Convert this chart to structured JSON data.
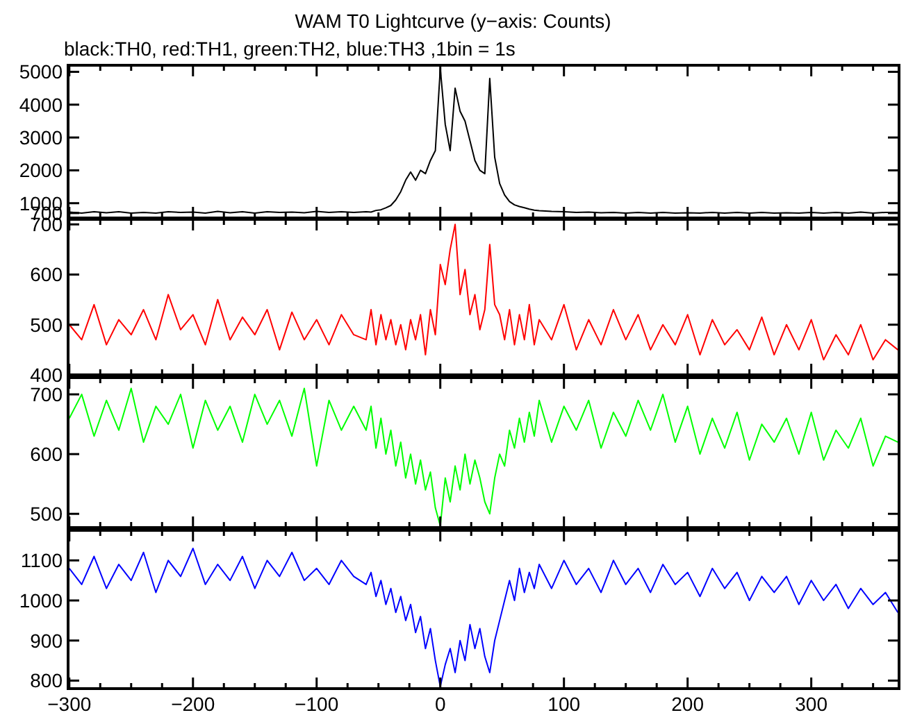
{
  "chart_data": [
    {
      "type": "line",
      "title": "WAM T0 Lightcurve (y−axis: Counts)",
      "subtitle": "black:TH0, red:TH1, green:TH2, blue:TH3 ,1bin = 1s",
      "tick_labels": "y",
      "x": [
        -300,
        -290,
        -280,
        -270,
        -260,
        -250,
        -240,
        -230,
        -220,
        -210,
        -200,
        -190,
        -180,
        -170,
        -160,
        -150,
        -140,
        -130,
        -120,
        -110,
        -100,
        -90,
        -80,
        -70,
        -60,
        -56,
        -52,
        -48,
        -44,
        -40,
        -36,
        -32,
        -28,
        -24,
        -20,
        -16,
        -12,
        -8,
        -4,
        0,
        4,
        8,
        12,
        16,
        20,
        24,
        28,
        32,
        36,
        40,
        44,
        48,
        52,
        56,
        60,
        64,
        68,
        72,
        76,
        80,
        90,
        100,
        110,
        120,
        130,
        140,
        150,
        160,
        170,
        180,
        190,
        200,
        210,
        220,
        230,
        240,
        250,
        260,
        270,
        280,
        290,
        300,
        310,
        320,
        330,
        340,
        350,
        360,
        370
      ],
      "series": [
        {
          "color": "#000000",
          "values": [
            730,
            700,
            740,
            710,
            740,
            700,
            720,
            700,
            740,
            720,
            730,
            700,
            750,
            710,
            740,
            700,
            740,
            720,
            730,
            710,
            750,
            720,
            740,
            720,
            740,
            730,
            780,
            800,
            860,
            930,
            1100,
            1350,
            1700,
            1950,
            1700,
            2000,
            1900,
            2300,
            2600,
            5100,
            3400,
            2600,
            4500,
            3800,
            3500,
            2900,
            2300,
            2000,
            1900,
            4800,
            2400,
            1600,
            1250,
            1050,
            950,
            900,
            860,
            820,
            790,
            770,
            750,
            740,
            720,
            730,
            710,
            720,
            700,
            720,
            700,
            720,
            700,
            710,
            700,
            720,
            700,
            720,
            700,
            720,
            700,
            710,
            700,
            720,
            700,
            720,
            700,
            730,
            700,
            720,
            720
          ]
        }
      ],
      "xlim": [
        -301,
        371
      ],
      "ylim": [
        550,
        5200
      ],
      "yticks": [
        700,
        1000,
        2000,
        3000,
        4000,
        5000
      ],
      "xticks": [
        -300,
        {
          "value": -275,
          "label": null
        },
        {
          "value": -250,
          "label": null
        },
        {
          "value": -225,
          "label": null
        },
        -200,
        {
          "value": -175,
          "label": null
        },
        {
          "value": -150,
          "label": null
        },
        {
          "value": -125,
          "label": null
        },
        -100,
        {
          "value": -75,
          "label": null
        },
        {
          "value": -50,
          "label": null
        },
        {
          "value": -25,
          "label": null
        },
        0,
        {
          "value": 25,
          "label": null
        },
        {
          "value": 50,
          "label": null
        },
        {
          "value": 75,
          "label": null
        },
        100,
        {
          "value": 125,
          "label": null
        },
        {
          "value": 150,
          "label": null
        },
        {
          "value": 175,
          "label": null
        },
        200,
        {
          "value": 225,
          "label": null
        },
        {
          "value": 250,
          "label": null
        },
        {
          "value": 275,
          "label": null
        },
        300,
        {
          "value": 325,
          "label": null
        },
        {
          "value": 350,
          "label": null
        }
      ]
    },
    {
      "type": "line",
      "tick_labels": "y",
      "x": [
        -300,
        -290,
        -280,
        -270,
        -260,
        -250,
        -240,
        -230,
        -220,
        -210,
        -200,
        -190,
        -180,
        -170,
        -160,
        -150,
        -140,
        -130,
        -120,
        -110,
        -100,
        -90,
        -80,
        -70,
        -60,
        -56,
        -52,
        -48,
        -44,
        -40,
        -36,
        -32,
        -28,
        -24,
        -20,
        -16,
        -12,
        -8,
        -4,
        0,
        4,
        8,
        12,
        16,
        20,
        24,
        28,
        32,
        36,
        40,
        44,
        48,
        52,
        56,
        60,
        64,
        68,
        72,
        76,
        80,
        90,
        100,
        110,
        120,
        130,
        140,
        150,
        160,
        170,
        180,
        190,
        200,
        210,
        220,
        230,
        240,
        250,
        260,
        270,
        280,
        290,
        300,
        310,
        320,
        330,
        340,
        350,
        360,
        370
      ],
      "series": [
        {
          "color": "#ff0000",
          "values": [
            500,
            470,
            540,
            460,
            510,
            480,
            530,
            470,
            560,
            490,
            520,
            460,
            550,
            470,
            515,
            480,
            530,
            450,
            525,
            470,
            510,
            460,
            520,
            480,
            470,
            530,
            460,
            520,
            470,
            510,
            460,
            500,
            450,
            510,
            470,
            520,
            440,
            530,
            480,
            620,
            580,
            650,
            700,
            560,
            610,
            520,
            560,
            490,
            530,
            660,
            540,
            520,
            470,
            530,
            460,
            520,
            470,
            540,
            460,
            510,
            470,
            540,
            450,
            510,
            460,
            530,
            470,
            520,
            450,
            500,
            460,
            520,
            440,
            510,
            460,
            490,
            450,
            515,
            440,
            500,
            450,
            510,
            430,
            480,
            440,
            500,
            430,
            470,
            450
          ]
        }
      ],
      "xlim": [
        -301,
        371
      ],
      "ylim": [
        400,
        710
      ],
      "yticks": [
        400,
        500,
        600,
        700
      ],
      "xticks": [
        -300,
        {
          "value": -275,
          "label": null
        },
        {
          "value": -250,
          "label": null
        },
        {
          "value": -225,
          "label": null
        },
        -200,
        {
          "value": -175,
          "label": null
        },
        {
          "value": -150,
          "label": null
        },
        {
          "value": -125,
          "label": null
        },
        -100,
        {
          "value": -75,
          "label": null
        },
        {
          "value": -50,
          "label": null
        },
        {
          "value": -25,
          "label": null
        },
        0,
        {
          "value": 25,
          "label": null
        },
        {
          "value": 50,
          "label": null
        },
        {
          "value": 75,
          "label": null
        },
        100,
        {
          "value": 125,
          "label": null
        },
        {
          "value": 150,
          "label": null
        },
        {
          "value": 175,
          "label": null
        },
        200,
        {
          "value": 225,
          "label": null
        },
        {
          "value": 250,
          "label": null
        },
        {
          "value": 275,
          "label": null
        },
        300,
        {
          "value": 325,
          "label": null
        },
        {
          "value": 350,
          "label": null
        }
      ]
    },
    {
      "type": "line",
      "tick_labels": "y",
      "x": [
        -300,
        -290,
        -280,
        -270,
        -260,
        -250,
        -240,
        -230,
        -220,
        -210,
        -200,
        -190,
        -180,
        -170,
        -160,
        -150,
        -140,
        -130,
        -120,
        -110,
        -100,
        -90,
        -80,
        -70,
        -60,
        -56,
        -52,
        -48,
        -44,
        -40,
        -36,
        -32,
        -28,
        -24,
        -20,
        -16,
        -12,
        -8,
        -4,
        0,
        4,
        8,
        12,
        16,
        20,
        24,
        28,
        32,
        36,
        40,
        44,
        48,
        52,
        56,
        60,
        64,
        68,
        72,
        76,
        80,
        90,
        100,
        110,
        120,
        130,
        140,
        150,
        160,
        170,
        180,
        190,
        200,
        210,
        220,
        230,
        240,
        250,
        260,
        270,
        280,
        290,
        300,
        310,
        320,
        330,
        340,
        350,
        360,
        370
      ],
      "series": [
        {
          "color": "#00ff00",
          "values": [
            660,
            700,
            630,
            690,
            640,
            710,
            620,
            680,
            650,
            700,
            610,
            690,
            640,
            680,
            620,
            700,
            650,
            690,
            630,
            710,
            580,
            690,
            640,
            680,
            640,
            680,
            610,
            660,
            600,
            640,
            580,
            620,
            560,
            600,
            550,
            590,
            540,
            570,
            510,
            480,
            560,
            520,
            580,
            540,
            600,
            550,
            590,
            560,
            520,
            500,
            560,
            600,
            580,
            640,
            610,
            660,
            620,
            670,
            630,
            690,
            620,
            680,
            640,
            690,
            610,
            670,
            630,
            690,
            640,
            700,
            620,
            680,
            600,
            660,
            610,
            670,
            590,
            650,
            620,
            660,
            600,
            670,
            590,
            640,
            610,
            660,
            580,
            630,
            620
          ]
        }
      ],
      "xlim": [
        -301,
        371
      ],
      "ylim": [
        477,
        728
      ],
      "yticks": [
        500,
        600,
        700
      ],
      "xticks": [
        -300,
        {
          "value": -275,
          "label": null
        },
        {
          "value": -250,
          "label": null
        },
        {
          "value": -225,
          "label": null
        },
        -200,
        {
          "value": -175,
          "label": null
        },
        {
          "value": -150,
          "label": null
        },
        {
          "value": -125,
          "label": null
        },
        -100,
        {
          "value": -75,
          "label": null
        },
        {
          "value": -50,
          "label": null
        },
        {
          "value": -25,
          "label": null
        },
        0,
        {
          "value": 25,
          "label": null
        },
        {
          "value": 50,
          "label": null
        },
        {
          "value": 75,
          "label": null
        },
        100,
        {
          "value": 125,
          "label": null
        },
        {
          "value": 150,
          "label": null
        },
        {
          "value": 175,
          "label": null
        },
        200,
        {
          "value": 225,
          "label": null
        },
        {
          "value": 250,
          "label": null
        },
        {
          "value": 275,
          "label": null
        },
        300,
        {
          "value": 325,
          "label": null
        },
        {
          "value": 350,
          "label": null
        }
      ]
    },
    {
      "type": "line",
      "x": [
        -300,
        -290,
        -280,
        -270,
        -260,
        -250,
        -240,
        -230,
        -220,
        -210,
        -200,
        -190,
        -180,
        -170,
        -160,
        -150,
        -140,
        -130,
        -120,
        -110,
        -100,
        -90,
        -80,
        -70,
        -60,
        -56,
        -52,
        -48,
        -44,
        -40,
        -36,
        -32,
        -28,
        -24,
        -20,
        -16,
        -12,
        -8,
        -4,
        0,
        4,
        8,
        12,
        16,
        20,
        24,
        28,
        32,
        36,
        40,
        44,
        48,
        52,
        56,
        60,
        64,
        68,
        72,
        76,
        80,
        90,
        100,
        110,
        120,
        130,
        140,
        150,
        160,
        170,
        180,
        190,
        200,
        210,
        220,
        230,
        240,
        250,
        260,
        270,
        280,
        290,
        300,
        310,
        320,
        330,
        340,
        350,
        360,
        370
      ],
      "series": [
        {
          "color": "#0000ff",
          "values": [
            1080,
            1040,
            1110,
            1030,
            1090,
            1050,
            1120,
            1020,
            1100,
            1060,
            1130,
            1040,
            1090,
            1050,
            1110,
            1030,
            1100,
            1060,
            1120,
            1050,
            1080,
            1040,
            1100,
            1060,
            1040,
            1070,
            1010,
            1050,
            990,
            1030,
            970,
            1010,
            950,
            990,
            920,
            960,
            880,
            930,
            850,
            785,
            840,
            880,
            820,
            900,
            850,
            940,
            880,
            930,
            860,
            820,
            900,
            950,
            1000,
            1050,
            1000,
            1080,
            1020,
            1070,
            1030,
            1090,
            1030,
            1100,
            1040,
            1080,
            1020,
            1100,
            1040,
            1080,
            1020,
            1090,
            1040,
            1070,
            1010,
            1080,
            1030,
            1070,
            1000,
            1060,
            1020,
            1060,
            990,
            1050,
            1000,
            1040,
            980,
            1030,
            990,
            1020,
            970
          ]
        }
      ],
      "xlim": [
        -301,
        371
      ],
      "ylim": [
        780,
        1175
      ],
      "yticks": [
        800,
        900,
        1000,
        1100
      ],
      "xticks": [
        -300,
        {
          "value": -275,
          "label": null
        },
        {
          "value": -250,
          "label": null
        },
        {
          "value": -225,
          "label": null
        },
        -200,
        {
          "value": -175,
          "label": null
        },
        {
          "value": -150,
          "label": null
        },
        {
          "value": -125,
          "label": null
        },
        -100,
        {
          "value": -75,
          "label": null
        },
        {
          "value": -50,
          "label": null
        },
        {
          "value": -25,
          "label": null
        },
        0,
        {
          "value": 25,
          "label": null
        },
        {
          "value": 50,
          "label": null
        },
        {
          "value": 75,
          "label": null
        },
        100,
        {
          "value": 125,
          "label": null
        },
        {
          "value": 150,
          "label": null
        },
        {
          "value": 175,
          "label": null
        },
        200,
        {
          "value": 225,
          "label": null
        },
        {
          "value": 250,
          "label": null
        },
        {
          "value": 275,
          "label": null
        },
        300,
        {
          "value": 325,
          "label": null
        },
        {
          "value": 350,
          "label": null
        }
      ]
    }
  ]
}
